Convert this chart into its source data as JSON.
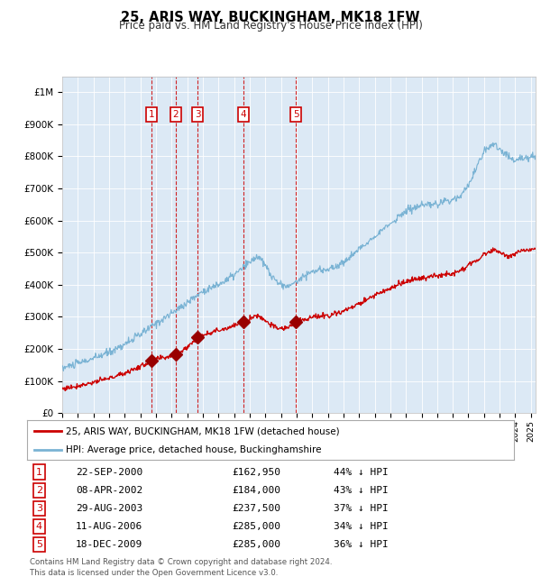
{
  "title": "25, ARIS WAY, BUCKINGHAM, MK18 1FW",
  "subtitle": "Price paid vs. HM Land Registry's House Price Index (HPI)",
  "background_color": "#dce9f5",
  "plot_bg_color": "#dce9f5",
  "legend_line1": "25, ARIS WAY, BUCKINGHAM, MK18 1FW (detached house)",
  "legend_line2": "HPI: Average price, detached house, Buckinghamshire",
  "hpi_color": "#7ab3d4",
  "price_color": "#cc0000",
  "sale_marker_color": "#990000",
  "footer": "Contains HM Land Registry data © Crown copyright and database right 2024.\nThis data is licensed under the Open Government Licence v3.0.",
  "sales": [
    {
      "num": 1,
      "date": "22-SEP-2000",
      "price": 162950,
      "pct": "44% ↓ HPI",
      "x_year": 2000.72
    },
    {
      "num": 2,
      "date": "08-APR-2002",
      "price": 184000,
      "pct": "43% ↓ HPI",
      "x_year": 2002.27
    },
    {
      "num": 3,
      "date": "29-AUG-2003",
      "price": 237500,
      "pct": "37% ↓ HPI",
      "x_year": 2003.66
    },
    {
      "num": 4,
      "date": "11-AUG-2006",
      "price": 285000,
      "pct": "34% ↓ HPI",
      "x_year": 2006.61
    },
    {
      "num": 5,
      "date": "18-DEC-2009",
      "price": 285000,
      "pct": "36% ↓ HPI",
      "x_year": 2009.96
    }
  ],
  "ylim": [
    0,
    1050000
  ],
  "xlim_start": 1995.0,
  "xlim_end": 2025.3,
  "yticks": [
    0,
    100000,
    200000,
    300000,
    400000,
    500000,
    600000,
    700000,
    800000,
    900000,
    1000000
  ],
  "ytick_labels": [
    "£0",
    "£100K",
    "£200K",
    "£300K",
    "£400K",
    "£500K",
    "£600K",
    "£700K",
    "£800K",
    "£900K",
    "£1M"
  ]
}
